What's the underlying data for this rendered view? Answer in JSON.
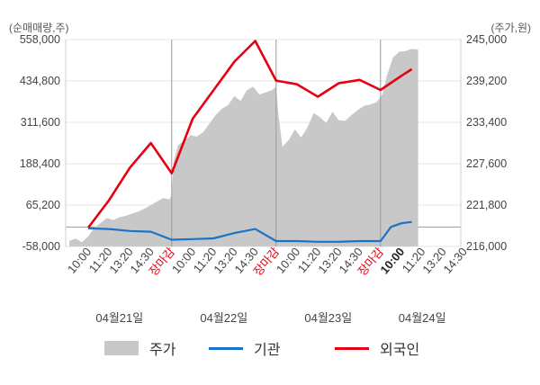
{
  "chart_data": {
    "type": "line",
    "left_axis_unit": "(순매매량,주)",
    "right_axis_unit": "(주가,원)",
    "left_axis": {
      "ylim": [
        -58000,
        558000
      ],
      "ticks": [
        "558,000",
        "434,800",
        "311,600",
        "188,400",
        "65,200",
        "-58,000"
      ]
    },
    "right_axis": {
      "ylim": [
        216000,
        245000
      ],
      "ticks": [
        "245,000",
        "239,200",
        "233,400",
        "227,600",
        "221,800",
        "216,000"
      ]
    },
    "x_tick_labels": [
      "10:00",
      "11:20",
      "13:20",
      "14:30",
      "장마감",
      "10:00",
      "11:20",
      "13:20",
      "14:30",
      "장마감",
      "10:00",
      "11:20",
      "13:20",
      "14:30",
      "장마감",
      "10:00",
      "11:20",
      "13:20",
      "14:30"
    ],
    "close_label": "장마감",
    "highlight_label_index": 15,
    "day_labels": [
      "04월21일",
      "04월22일",
      "04월23일",
      "04월24일"
    ],
    "day_label_positions": [
      1.5,
      6.5,
      11.5,
      16.0
    ],
    "day_dividers": [
      4,
      9,
      14
    ],
    "series": [
      {
        "name": "주가",
        "kind": "area",
        "axis": "right",
        "color": "#c8c8c8",
        "x": [
          -0.9,
          -0.6,
          -0.3,
          0.0,
          0.3,
          0.6,
          0.9,
          1.2,
          1.5,
          1.8,
          2.1,
          2.4,
          2.7,
          3.0,
          3.3,
          3.6,
          3.9,
          4.0,
          4.1,
          4.3,
          4.6,
          4.9,
          5.2,
          5.5,
          5.8,
          6.1,
          6.4,
          6.7,
          7.0,
          7.3,
          7.6,
          7.9,
          8.2,
          8.5,
          8.8,
          9.0,
          9.1,
          9.3,
          9.6,
          9.9,
          10.2,
          10.5,
          10.8,
          11.1,
          11.4,
          11.7,
          12.0,
          12.3,
          12.6,
          12.9,
          13.2,
          13.5,
          13.8,
          14.0,
          14.1,
          14.3,
          14.6,
          14.9,
          15.2,
          15.5,
          15.8
        ],
        "values": [
          216800,
          217100,
          216600,
          217400,
          218700,
          219300,
          220000,
          219700,
          220100,
          220300,
          220600,
          220900,
          221300,
          221800,
          222300,
          222800,
          222600,
          223200,
          228000,
          230200,
          230800,
          231600,
          231400,
          232000,
          233200,
          234400,
          235300,
          235800,
          237100,
          236400,
          237900,
          238400,
          237300,
          237600,
          237900,
          238400,
          234800,
          230000,
          230900,
          232400,
          231300,
          232700,
          234700,
          234100,
          233300,
          234900,
          233700,
          233600,
          234400,
          235100,
          235700,
          235900,
          236200,
          236900,
          237400,
          239900,
          242500,
          243300,
          243400,
          243700,
          243600
        ]
      },
      {
        "name": "기관",
        "kind": "line",
        "axis": "left",
        "color": "#1a73c8",
        "x": [
          0,
          1,
          2,
          3,
          4,
          5,
          6,
          7,
          8,
          9,
          10,
          11,
          12,
          13,
          14,
          14.5,
          15,
          15.5
        ],
        "values": [
          -4000,
          -6000,
          -12000,
          -14000,
          -38000,
          -36000,
          -34000,
          -18000,
          -6000,
          -42000,
          -42000,
          -44000,
          -44000,
          -42000,
          -42000,
          0,
          11000,
          15000
        ]
      },
      {
        "name": "외국인",
        "kind": "line",
        "axis": "left",
        "color": "#e60012",
        "x": [
          0,
          1,
          2,
          3,
          4,
          5,
          6,
          7,
          8,
          9,
          10,
          11,
          12,
          13,
          14,
          15,
          15.5
        ],
        "values": [
          -2000,
          80000,
          177000,
          250000,
          160000,
          322000,
          407000,
          492000,
          554000,
          436000,
          425000,
          388000,
          428000,
          438000,
          408000,
          450000,
          470000
        ]
      }
    ],
    "grid": "horizontal",
    "legend_position": "bottom"
  }
}
